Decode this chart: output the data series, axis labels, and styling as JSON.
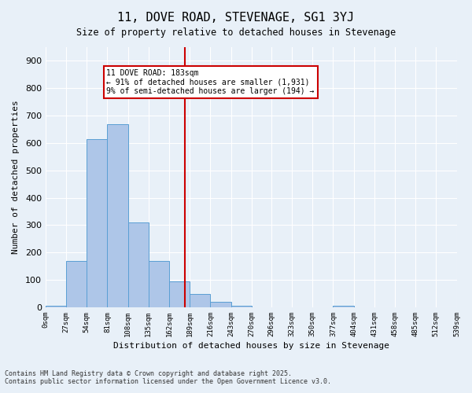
{
  "title": "11, DOVE ROAD, STEVENAGE, SG1 3YJ",
  "subtitle": "Size of property relative to detached houses in Stevenage",
  "xlabel": "Distribution of detached houses by size in Stevenage",
  "ylabel": "Number of detached properties",
  "bar_color": "#aec6e8",
  "bar_edge_color": "#5a9fd4",
  "background_color": "#e8f0f8",
  "grid_color": "#ffffff",
  "vline_color": "#cc0000",
  "vline_x": 183,
  "annotation_text": "11 DOVE ROAD: 183sqm\n← 91% of detached houses are smaller (1,931)\n9% of semi-detached houses are larger (194) →",
  "annotation_box_color": "#ffffff",
  "annotation_box_edge": "#cc0000",
  "footer_line1": "Contains HM Land Registry data © Crown copyright and database right 2025.",
  "footer_line2": "Contains public sector information licensed under the Open Government Licence v3.0.",
  "bin_edges": [
    0,
    27,
    54,
    81,
    108,
    135,
    162,
    189,
    216,
    243,
    270,
    296,
    323,
    350,
    377,
    404,
    431,
    458,
    485,
    512,
    539
  ],
  "bin_labels": [
    "0sqm",
    "27sqm",
    "54sqm",
    "81sqm",
    "108sqm",
    "135sqm",
    "162sqm",
    "189sqm",
    "216sqm",
    "243sqm",
    "270sqm",
    "296sqm",
    "323sqm",
    "350sqm",
    "377sqm",
    "404sqm",
    "431sqm",
    "458sqm",
    "485sqm",
    "512sqm",
    "539sqm"
  ],
  "counts": [
    5,
    168,
    615,
    670,
    310,
    170,
    95,
    50,
    20,
    5,
    0,
    0,
    0,
    0,
    5,
    0,
    0,
    0,
    0,
    0
  ],
  "ylim": [
    0,
    950
  ],
  "yticks": [
    0,
    100,
    200,
    300,
    400,
    500,
    600,
    700,
    800,
    900
  ]
}
